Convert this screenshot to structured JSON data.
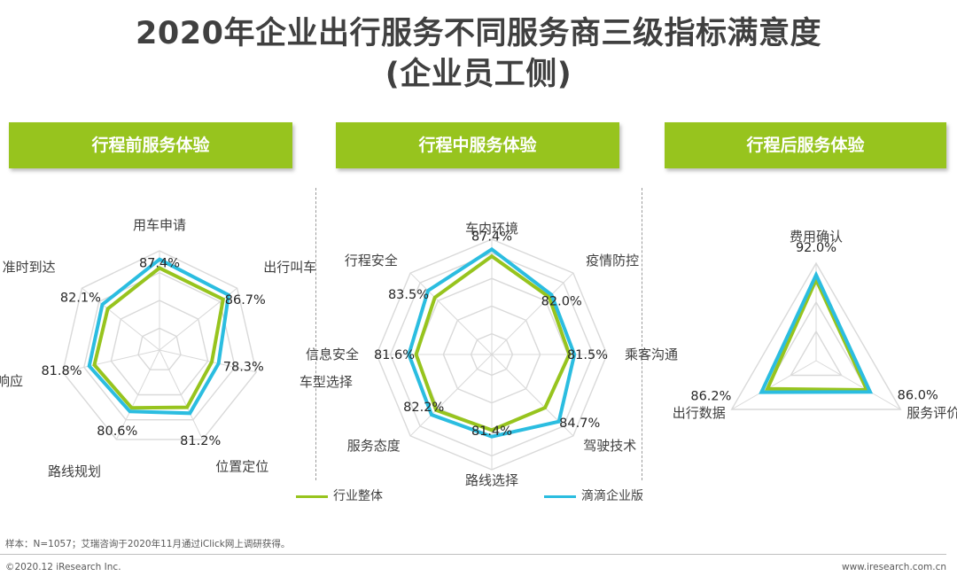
{
  "title_line1": "2020年企业出行服务不同服务商三级指标满意度",
  "title_line2": "(企业员工侧)",
  "panels": [
    {
      "label": "行程前服务体验"
    },
    {
      "label": "行程中服务体验"
    },
    {
      "label": "行程后服务体验"
    }
  ],
  "legend": {
    "industry": "行业整体",
    "didi": "滴滴企业版"
  },
  "colors": {
    "industry": "#97c41e",
    "didi": "#2bbde0",
    "grid": "#d9d9d9",
    "header": "#97c41e"
  },
  "note": "样本：N=1057；艾瑞咨询于2020年11月通过iClick网上调研获得。",
  "copyright": "©2020.12 iResearch Inc.",
  "website": "www.iresearch.com.cn",
  "chart_data": [
    {
      "type": "radar",
      "title": "行程前服务体验",
      "axes": [
        "用车申请",
        "出行叫车",
        "车型选择",
        "位置定位",
        "路线规划",
        "订单响应",
        "准时到达"
      ],
      "series": [
        {
          "name": "滴滴企业版",
          "values": [
            87.4,
            86.7,
            78.3,
            81.2,
            80.6,
            81.8,
            82.1
          ]
        },
        {
          "name": "行业整体",
          "values": [
            84.8,
            84.6,
            76.2,
            79.2,
            79.4,
            80.2,
            80.0
          ]
        }
      ],
      "data_labels": [
        "87.4%",
        "86.7%",
        "78.3%",
        "81.2%",
        "80.6%",
        "81.8%",
        "82.1%"
      ],
      "range": [
        60,
        90
      ]
    },
    {
      "type": "radar",
      "title": "行程中服务体验",
      "axes": [
        "车内环境",
        "疫情防控",
        "乘客沟通",
        "驾驶技术",
        "路线选择",
        "服务态度",
        "信息安全",
        "行程安全"
      ],
      "series": [
        {
          "name": "滴滴企业版",
          "values": [
            87.4,
            82.0,
            81.5,
            84.7,
            81.4,
            82.2,
            81.6,
            83.5
          ]
        },
        {
          "name": "行业整体",
          "values": [
            85.6,
            81.1,
            80.2,
            79.6,
            79.7,
            80.5,
            79.7,
            81.0
          ]
        }
      ],
      "data_labels": [
        "87.4%",
        "82.0%",
        "81.5%",
        "84.7%",
        "81.4%",
        "82.2%",
        "81.6%",
        "83.5%"
      ],
      "range": [
        60,
        90
      ]
    },
    {
      "type": "radar",
      "title": "行程后服务体验",
      "axes": [
        "费用确认",
        "服务评价",
        "出行数据"
      ],
      "series": [
        {
          "name": "滴滴企业版",
          "values": [
            92.0,
            86.0,
            86.2
          ]
        },
        {
          "name": "行业整体",
          "values": [
            90.8,
            85.0,
            84.4
          ]
        }
      ],
      "data_labels": [
        "92.0%",
        "86.0%",
        "86.2%"
      ],
      "range": [
        70,
        95
      ]
    }
  ]
}
